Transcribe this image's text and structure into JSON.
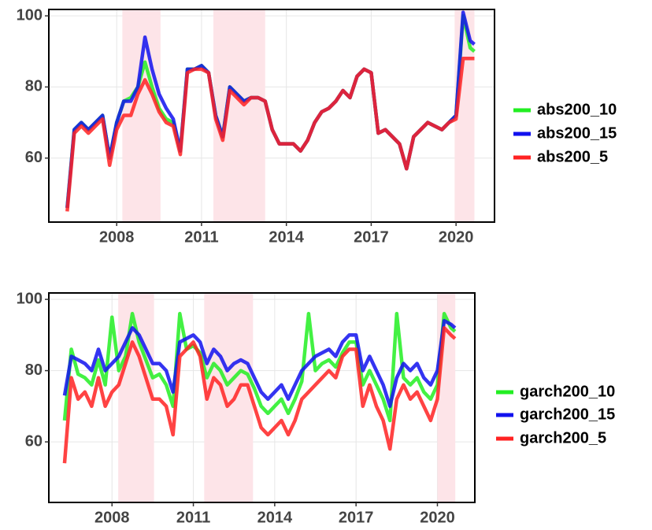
{
  "chart_data": [
    {
      "type": "line",
      "x": [
        2006.25,
        2006.5,
        2006.75,
        2007,
        2007.25,
        2007.5,
        2007.75,
        2008,
        2008.25,
        2008.5,
        2008.75,
        2009,
        2009.25,
        2009.5,
        2009.75,
        2010,
        2010.25,
        2010.5,
        2010.75,
        2011,
        2011.25,
        2011.5,
        2011.75,
        2012,
        2012.25,
        2012.5,
        2012.75,
        2013,
        2013.25,
        2013.5,
        2013.75,
        2014,
        2014.25,
        2014.5,
        2014.75,
        2015,
        2015.25,
        2015.5,
        2015.75,
        2016,
        2016.25,
        2016.5,
        2016.75,
        2017,
        2017.25,
        2017.5,
        2017.75,
        2018,
        2018.25,
        2018.5,
        2018.75,
        2019,
        2019.25,
        2019.5,
        2019.75,
        2020,
        2020.25,
        2020.5,
        2020.65
      ],
      "series": [
        {
          "name": "abs200_10",
          "color": "#22ee22",
          "values": [
            46,
            68,
            70,
            68,
            70,
            72,
            60,
            70,
            76,
            77,
            80,
            87,
            80,
            74,
            71,
            70,
            62,
            85,
            85,
            86,
            84,
            72,
            66,
            80,
            78,
            76,
            77,
            77,
            76,
            68,
            64,
            64,
            64,
            62,
            65,
            70,
            73,
            74,
            76,
            79,
            77,
            83,
            85,
            84,
            67,
            68,
            66,
            64,
            57,
            66,
            68,
            70,
            69,
            68,
            70,
            72,
            100,
            91,
            90
          ]
        },
        {
          "name": "abs200_15",
          "color": "#1111ee",
          "values": [
            46,
            68,
            70,
            68,
            70,
            72,
            60,
            70,
            76,
            76,
            80,
            94,
            85,
            78,
            74,
            71,
            62,
            85,
            85,
            86,
            84,
            72,
            66,
            80,
            78,
            76,
            77,
            77,
            76,
            68,
            64,
            64,
            64,
            62,
            65,
            70,
            73,
            74,
            76,
            79,
            77,
            83,
            85,
            84,
            67,
            68,
            66,
            64,
            57,
            66,
            68,
            70,
            69,
            68,
            70,
            72,
            101,
            93,
            92
          ]
        },
        {
          "name": "abs200_5",
          "color": "#ff2222",
          "values": [
            45,
            67,
            69,
            67,
            69,
            71,
            58,
            68,
            72,
            72,
            78,
            82,
            78,
            73,
            70,
            69,
            61,
            84,
            85,
            85,
            84,
            71,
            65,
            79,
            77,
            75,
            77,
            77,
            76,
            68,
            64,
            64,
            64,
            62,
            65,
            70,
            73,
            74,
            76,
            79,
            77,
            83,
            85,
            84,
            67,
            68,
            66,
            64,
            57,
            66,
            68,
            70,
            69,
            68,
            70,
            71,
            88,
            88,
            88
          ]
        }
      ],
      "shaded": [
        [
          2008.2,
          2009.55
        ],
        [
          2011.42,
          2013.25
        ],
        [
          2019.95,
          2020.65
        ]
      ],
      "shade_color": "#fde4e8",
      "xlim": [
        2005.6,
        2021.36
      ],
      "xticks": [
        2008,
        2011,
        2014,
        2017,
        2020
      ],
      "ylim": [
        42,
        101.8
      ],
      "yticks": [
        60,
        80,
        100
      ],
      "grid": true
    },
    {
      "type": "line",
      "x": [
        2006.25,
        2006.5,
        2006.75,
        2007,
        2007.25,
        2007.5,
        2007.75,
        2008,
        2008.25,
        2008.5,
        2008.75,
        2009,
        2009.25,
        2009.5,
        2009.75,
        2010,
        2010.25,
        2010.5,
        2010.75,
        2011,
        2011.25,
        2011.5,
        2011.75,
        2012,
        2012.25,
        2012.5,
        2012.75,
        2013,
        2013.25,
        2013.5,
        2013.75,
        2014,
        2014.25,
        2014.5,
        2014.75,
        2015,
        2015.25,
        2015.5,
        2015.75,
        2016,
        2016.25,
        2016.5,
        2016.75,
        2017,
        2017.25,
        2017.5,
        2017.75,
        2018,
        2018.25,
        2018.5,
        2018.75,
        2019,
        2019.25,
        2019.5,
        2019.75,
        2020,
        2020.25,
        2020.5,
        2020.65
      ],
      "series": [
        {
          "name": "garch200_10",
          "color": "#22ee22",
          "values": [
            66,
            86,
            79,
            78,
            76,
            83,
            76,
            95,
            80,
            84,
            96,
            88,
            83,
            78,
            79,
            76,
            70,
            96,
            86,
            87,
            85,
            78,
            82,
            80,
            76,
            78,
            80,
            79,
            75,
            70,
            68,
            70,
            72,
            68,
            72,
            77,
            96,
            80,
            82,
            83,
            81,
            85,
            88,
            88,
            76,
            80,
            76,
            72,
            66,
            96,
            78,
            76,
            78,
            74,
            72,
            76,
            96,
            92,
            91
          ]
        },
        {
          "name": "garch200_15",
          "color": "#1111ee",
          "values": [
            73,
            84,
            83,
            82,
            80,
            86,
            80,
            82,
            84,
            88,
            92,
            90,
            86,
            82,
            82,
            80,
            74,
            88,
            89,
            90,
            88,
            82,
            86,
            84,
            80,
            82,
            83,
            82,
            78,
            74,
            72,
            74,
            76,
            72,
            76,
            80,
            82,
            84,
            85,
            86,
            84,
            88,
            90,
            90,
            80,
            84,
            80,
            76,
            70,
            78,
            82,
            80,
            82,
            78,
            76,
            80,
            94,
            93,
            92
          ]
        },
        {
          "name": "garch200_5",
          "color": "#ff2222",
          "values": [
            54,
            78,
            72,
            74,
            70,
            78,
            70,
            74,
            76,
            82,
            88,
            84,
            78,
            72,
            72,
            70,
            62,
            84,
            86,
            88,
            84,
            72,
            78,
            76,
            70,
            72,
            76,
            76,
            70,
            64,
            62,
            64,
            66,
            62,
            66,
            72,
            74,
            76,
            78,
            80,
            78,
            84,
            86,
            86,
            70,
            76,
            70,
            66,
            58,
            72,
            76,
            72,
            74,
            70,
            66,
            72,
            92,
            90,
            89
          ]
        }
      ],
      "shaded": [
        [
          2008.23,
          2009.55
        ],
        [
          2011.4,
          2013.2
        ],
        [
          2020.0,
          2020.66
        ]
      ],
      "shade_color": "#fde4e8",
      "xlim": [
        2005.67,
        2021.38
      ],
      "xticks": [
        2008,
        2011,
        2014,
        2017,
        2020
      ],
      "ylim": [
        43,
        101.8
      ],
      "yticks": [
        60,
        80,
        100
      ],
      "grid": true
    }
  ]
}
